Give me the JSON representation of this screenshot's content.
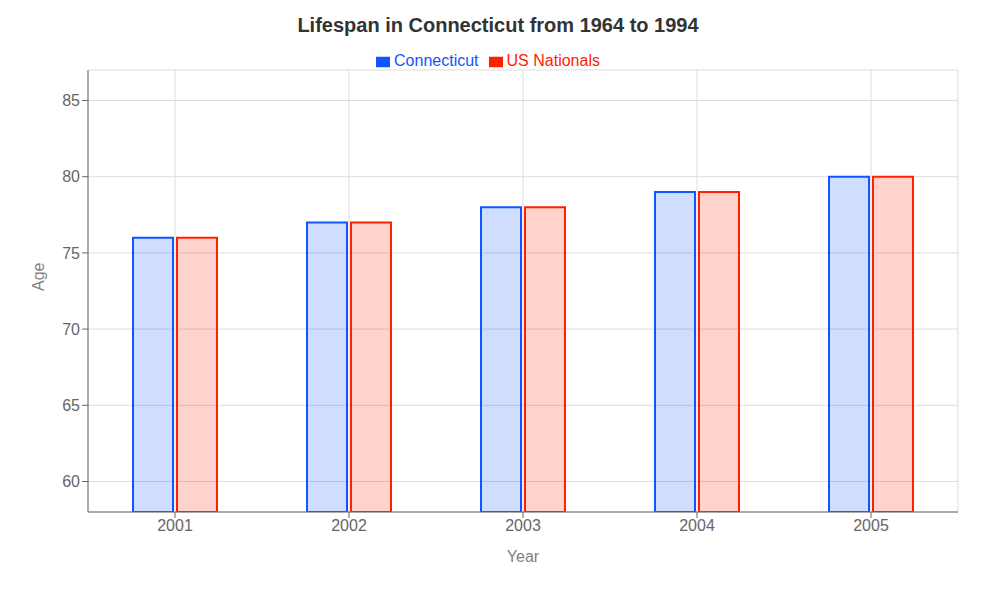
{
  "chart_data": {
    "type": "bar",
    "title": "Lifespan in Connecticut from 1964 to 1994",
    "xlabel": "Year",
    "ylabel": "Age",
    "categories": [
      "2001",
      "2002",
      "2003",
      "2004",
      "2005"
    ],
    "series": [
      {
        "name": "Connecticut",
        "color": "#1155ff",
        "values": [
          76,
          77,
          78,
          79,
          80
        ]
      },
      {
        "name": "US Nationals",
        "color": "#ff2200",
        "values": [
          76,
          77,
          78,
          79,
          80
        ]
      }
    ],
    "ylim": [
      58,
      87
    ],
    "yticks": [
      60,
      65,
      70,
      75,
      80,
      85
    ],
    "grid": true,
    "legend": "top"
  }
}
